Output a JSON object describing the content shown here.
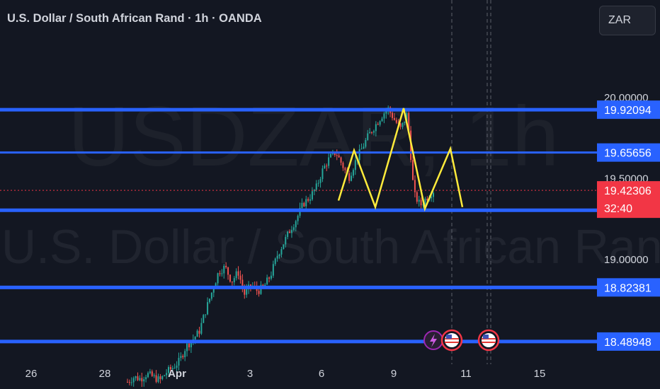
{
  "header": {
    "title": "U.S. Dollar / South African Rand · 1h · OANDA"
  },
  "currency_selector": {
    "label": "ZAR"
  },
  "watermark": {
    "symbol": "USDZAR, 1h",
    "description": "U.S. Dollar / South African Rand"
  },
  "colors": {
    "background": "#131722",
    "level_line": "#2962ff",
    "pattern_line": "#ffeb3b",
    "candle_up": "#26a69a",
    "candle_down": "#ef5350",
    "current_price": "#f23645"
  },
  "countdown": "32:40",
  "event_icons": [
    "lightning-icon",
    "us-flag-icon",
    "us-flag-icon"
  ],
  "chart_data": {
    "type": "candlestick",
    "y_axis": {
      "ticks": [
        {
          "value": 20.0,
          "label": "20.00000"
        },
        {
          "value": 19.5,
          "label": "19.50000"
        },
        {
          "value": 19.0,
          "label": "19.00000"
        }
      ],
      "range": [
        18.24,
        20.24
      ]
    },
    "x_axis": {
      "ticks": [
        "26",
        "28",
        "Apr",
        "3",
        "6",
        "9",
        "11",
        "15"
      ]
    },
    "levels": [
      {
        "value": 19.92094,
        "label": "19.92094"
      },
      {
        "value": 19.65656,
        "label": "19.65656"
      },
      {
        "value": 19.42306,
        "label": "19.42306",
        "current": true
      },
      {
        "value": 18.82381,
        "label": "18.82381"
      },
      {
        "value": 18.48948,
        "label": "18.48948"
      }
    ],
    "current_price": {
      "value": 19.42306,
      "label": "19.42306"
    },
    "pattern_points": [
      19.36,
      19.67,
      19.32,
      19.93,
      19.31,
      19.68,
      19.32
    ],
    "price_path": [
      18.24,
      18.27,
      18.26,
      18.29,
      18.27,
      18.25,
      18.3,
      18.33,
      18.37,
      18.46,
      18.5,
      18.55,
      18.68,
      18.8,
      18.92,
      18.95,
      18.86,
      18.92,
      18.78,
      18.84,
      18.8,
      18.83,
      18.9,
      19.02,
      19.1,
      19.18,
      19.25,
      19.34,
      19.38,
      19.44,
      19.55,
      19.62,
      19.66,
      19.58,
      19.5,
      19.6,
      19.68,
      19.76,
      19.82,
      19.88,
      19.93,
      19.86,
      19.8,
      19.9,
      19.4,
      19.33,
      19.38,
      19.42
    ]
  }
}
